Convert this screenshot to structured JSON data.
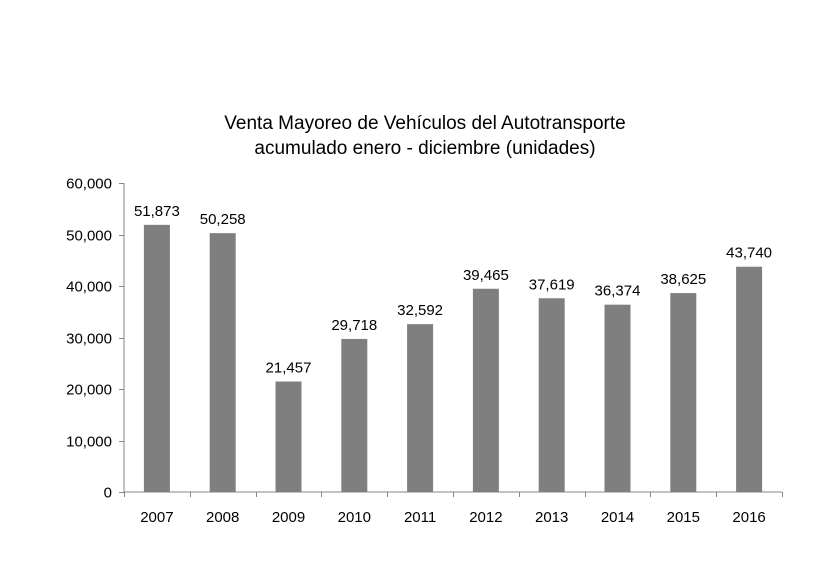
{
  "chart_data": {
    "type": "bar",
    "title": "Venta Mayoreo de Vehículos del Autotransporte",
    "subtitle": "acumulado enero - diciembre (unidades)",
    "categories": [
      "2007",
      "2008",
      "2009",
      "2010",
      "2011",
      "2012",
      "2013",
      "2014",
      "2015",
      "2016"
    ],
    "values": [
      51873,
      50258,
      21457,
      29718,
      32592,
      39465,
      37619,
      36374,
      38625,
      43740
    ],
    "value_labels": [
      "51,873",
      "50,258",
      "21,457",
      "29,718",
      "32,592",
      "39,465",
      "37,619",
      "36,374",
      "38,625",
      "43,740"
    ],
    "ylim": [
      0,
      60000
    ],
    "yticks": [
      0,
      10000,
      20000,
      30000,
      40000,
      50000,
      60000
    ],
    "ytick_labels": [
      "0",
      "10,000",
      "20,000",
      "30,000",
      "40,000",
      "50,000",
      "60,000"
    ],
    "xlabel": "",
    "ylabel": "",
    "grid": false,
    "legend": "none",
    "bar_color": "#7f7f7f",
    "axis_color": "#868686"
  }
}
